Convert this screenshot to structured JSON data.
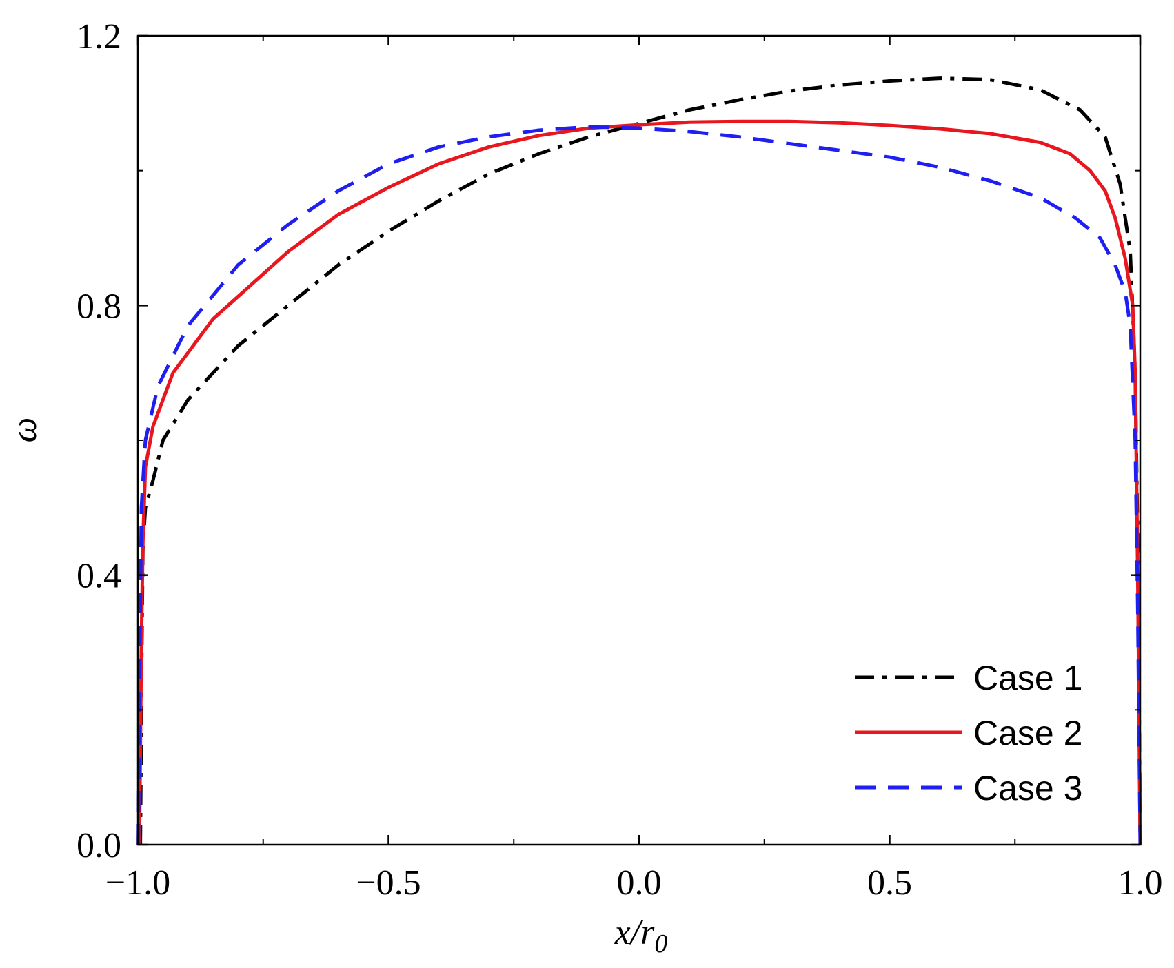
{
  "chart_data": {
    "type": "line",
    "title": "",
    "xlabel": {
      "main": "x/r",
      "sub": "0"
    },
    "ylabel": "ω",
    "xlim": [
      -1.0,
      1.0
    ],
    "ylim": [
      0.0,
      1.2
    ],
    "x_ticks": [
      "−1.0",
      "−0.5",
      "0.0",
      "0.5",
      "1.0"
    ],
    "x_tick_values": [
      -1.0,
      -0.5,
      0.0,
      0.5,
      1.0
    ],
    "x_minor_ticks": [
      -0.75,
      -0.25,
      0.25,
      0.75
    ],
    "y_ticks": [
      "0.0",
      "0.4",
      "0.8",
      "1.2"
    ],
    "y_tick_values": [
      0.0,
      0.4,
      0.8,
      1.2
    ],
    "y_minor_ticks": [
      0.2,
      0.6,
      1.0
    ],
    "grid": false,
    "legend_position": "bottom-right",
    "series": [
      {
        "name": "Case 1",
        "color": "#000000",
        "dash": "dashdot",
        "points": [
          [
            -0.995,
            0.0
          ],
          [
            -0.992,
            0.3
          ],
          [
            -0.99,
            0.44
          ],
          [
            -0.985,
            0.5
          ],
          [
            -0.97,
            0.54
          ],
          [
            -0.95,
            0.6
          ],
          [
            -0.9,
            0.66
          ],
          [
            -0.8,
            0.74
          ],
          [
            -0.7,
            0.8
          ],
          [
            -0.6,
            0.86
          ],
          [
            -0.5,
            0.91
          ],
          [
            -0.4,
            0.955
          ],
          [
            -0.3,
            0.995
          ],
          [
            -0.2,
            1.025
          ],
          [
            -0.1,
            1.05
          ],
          [
            0.0,
            1.07
          ],
          [
            0.1,
            1.09
          ],
          [
            0.2,
            1.105
          ],
          [
            0.3,
            1.118
          ],
          [
            0.4,
            1.127
          ],
          [
            0.5,
            1.133
          ],
          [
            0.6,
            1.137
          ],
          [
            0.7,
            1.135
          ],
          [
            0.8,
            1.12
          ],
          [
            0.88,
            1.09
          ],
          [
            0.93,
            1.05
          ],
          [
            0.96,
            0.98
          ],
          [
            0.98,
            0.88
          ],
          [
            0.99,
            0.7
          ],
          [
            0.996,
            0.4
          ],
          [
            1.0,
            0.0
          ]
        ]
      },
      {
        "name": "Case 2",
        "color": "#e8171f",
        "dash": "solid",
        "points": [
          [
            -0.997,
            0.0
          ],
          [
            -0.993,
            0.3
          ],
          [
            -0.99,
            0.45
          ],
          [
            -0.985,
            0.56
          ],
          [
            -0.97,
            0.62
          ],
          [
            -0.93,
            0.7
          ],
          [
            -0.85,
            0.78
          ],
          [
            -0.7,
            0.88
          ],
          [
            -0.6,
            0.935
          ],
          [
            -0.5,
            0.975
          ],
          [
            -0.4,
            1.01
          ],
          [
            -0.3,
            1.035
          ],
          [
            -0.2,
            1.052
          ],
          [
            -0.1,
            1.063
          ],
          [
            0.0,
            1.068
          ],
          [
            0.1,
            1.072
          ],
          [
            0.2,
            1.073
          ],
          [
            0.3,
            1.073
          ],
          [
            0.4,
            1.071
          ],
          [
            0.5,
            1.067
          ],
          [
            0.6,
            1.062
          ],
          [
            0.7,
            1.055
          ],
          [
            0.8,
            1.042
          ],
          [
            0.86,
            1.025
          ],
          [
            0.9,
            1.0
          ],
          [
            0.93,
            0.97
          ],
          [
            0.95,
            0.93
          ],
          [
            0.97,
            0.87
          ],
          [
            0.985,
            0.8
          ],
          [
            0.99,
            0.7
          ],
          [
            0.995,
            0.4
          ],
          [
            1.0,
            0.0
          ]
        ]
      },
      {
        "name": "Case 3",
        "color": "#1f1ff2",
        "dash": "dashed",
        "points": [
          [
            -0.999,
            0.0
          ],
          [
            -0.996,
            0.3
          ],
          [
            -0.993,
            0.5
          ],
          [
            -0.985,
            0.6
          ],
          [
            -0.96,
            0.68
          ],
          [
            -0.9,
            0.77
          ],
          [
            -0.8,
            0.86
          ],
          [
            -0.7,
            0.92
          ],
          [
            -0.6,
            0.97
          ],
          [
            -0.5,
            1.01
          ],
          [
            -0.4,
            1.035
          ],
          [
            -0.3,
            1.05
          ],
          [
            -0.2,
            1.06
          ],
          [
            -0.1,
            1.065
          ],
          [
            0.0,
            1.063
          ],
          [
            0.1,
            1.058
          ],
          [
            0.2,
            1.05
          ],
          [
            0.3,
            1.04
          ],
          [
            0.4,
            1.03
          ],
          [
            0.5,
            1.02
          ],
          [
            0.6,
            1.005
          ],
          [
            0.7,
            0.985
          ],
          [
            0.8,
            0.96
          ],
          [
            0.87,
            0.93
          ],
          [
            0.92,
            0.9
          ],
          [
            0.95,
            0.86
          ],
          [
            0.97,
            0.82
          ],
          [
            0.98,
            0.77
          ],
          [
            0.99,
            0.6
          ],
          [
            0.995,
            0.35
          ],
          [
            1.0,
            0.0
          ]
        ]
      }
    ]
  }
}
